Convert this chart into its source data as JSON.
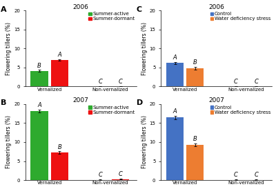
{
  "panels": [
    {
      "label": "A",
      "year": "2006",
      "groups": [
        "Vernalized",
        "Non-vernalized"
      ],
      "bars": [
        {
          "name": "Summer-active",
          "color": "#2eaa2e",
          "values": [
            4.1,
            0.08
          ],
          "errors": [
            0.25,
            0.04
          ]
        },
        {
          "name": "Summer-dormant",
          "color": "#ee1111",
          "values": [
            7.0,
            0.08
          ],
          "errors": [
            0.25,
            0.04
          ]
        }
      ],
      "sig_labels": [
        [
          "B",
          "A"
        ],
        [
          "C",
          "C"
        ]
      ],
      "ylim": [
        0,
        20
      ],
      "yticks": [
        0,
        5,
        10,
        15,
        20
      ],
      "ylabel": "Flowering tillers (%)"
    },
    {
      "label": "B",
      "year": "2007",
      "groups": [
        "Vernalized",
        "Non-vernalized"
      ],
      "bars": [
        {
          "name": "Summer-active",
          "color": "#2eaa2e",
          "values": [
            18.2,
            0.1
          ],
          "errors": [
            0.4,
            0.04
          ]
        },
        {
          "name": "Summer-dormant",
          "color": "#ee1111",
          "values": [
            7.2,
            0.25
          ],
          "errors": [
            0.35,
            0.04
          ]
        }
      ],
      "sig_labels": [
        [
          "A",
          "B"
        ],
        [
          "C",
          "C"
        ]
      ],
      "ylim": [
        0,
        20
      ],
      "yticks": [
        0,
        5,
        10,
        15,
        20
      ],
      "ylabel": "Flowering tillers (%)"
    },
    {
      "label": "C",
      "year": "2006",
      "groups": [
        "Vernalized",
        "Non-vernalized"
      ],
      "bars": [
        {
          "name": "Control",
          "color": "#4472c4",
          "values": [
            6.2,
            0.08
          ],
          "errors": [
            0.28,
            0.04
          ]
        },
        {
          "name": "Water deficiency stress",
          "color": "#ed7d31",
          "values": [
            4.8,
            0.08
          ],
          "errors": [
            0.28,
            0.04
          ]
        }
      ],
      "sig_labels": [
        [
          "A",
          "B"
        ],
        [
          "C",
          "C"
        ]
      ],
      "ylim": [
        0,
        20
      ],
      "yticks": [
        0,
        5,
        10,
        15,
        20
      ],
      "ylabel": "Flowering tillers (%)"
    },
    {
      "label": "D",
      "year": "2007",
      "groups": [
        "Vernalized",
        "Non-vernalized"
      ],
      "bars": [
        {
          "name": "Control",
          "color": "#4472c4",
          "values": [
            16.5,
            0.1
          ],
          "errors": [
            0.45,
            0.04
          ]
        },
        {
          "name": "Water deficiency stress",
          "color": "#ed7d31",
          "values": [
            9.2,
            0.1
          ],
          "errors": [
            0.35,
            0.04
          ]
        }
      ],
      "sig_labels": [
        [
          "A",
          "B"
        ],
        [
          "C",
          "C"
        ]
      ],
      "ylim": [
        0,
        20
      ],
      "yticks": [
        0,
        5,
        10,
        15,
        20
      ],
      "ylabel": "Flowering tillers (%)"
    }
  ],
  "background_color": "#ffffff",
  "bar_width": 0.28,
  "fontsize_label": 5.5,
  "fontsize_tick": 5.0,
  "fontsize_title": 6.5,
  "fontsize_sig": 6.0,
  "fontsize_legend": 5.0,
  "fontsize_panel": 8
}
